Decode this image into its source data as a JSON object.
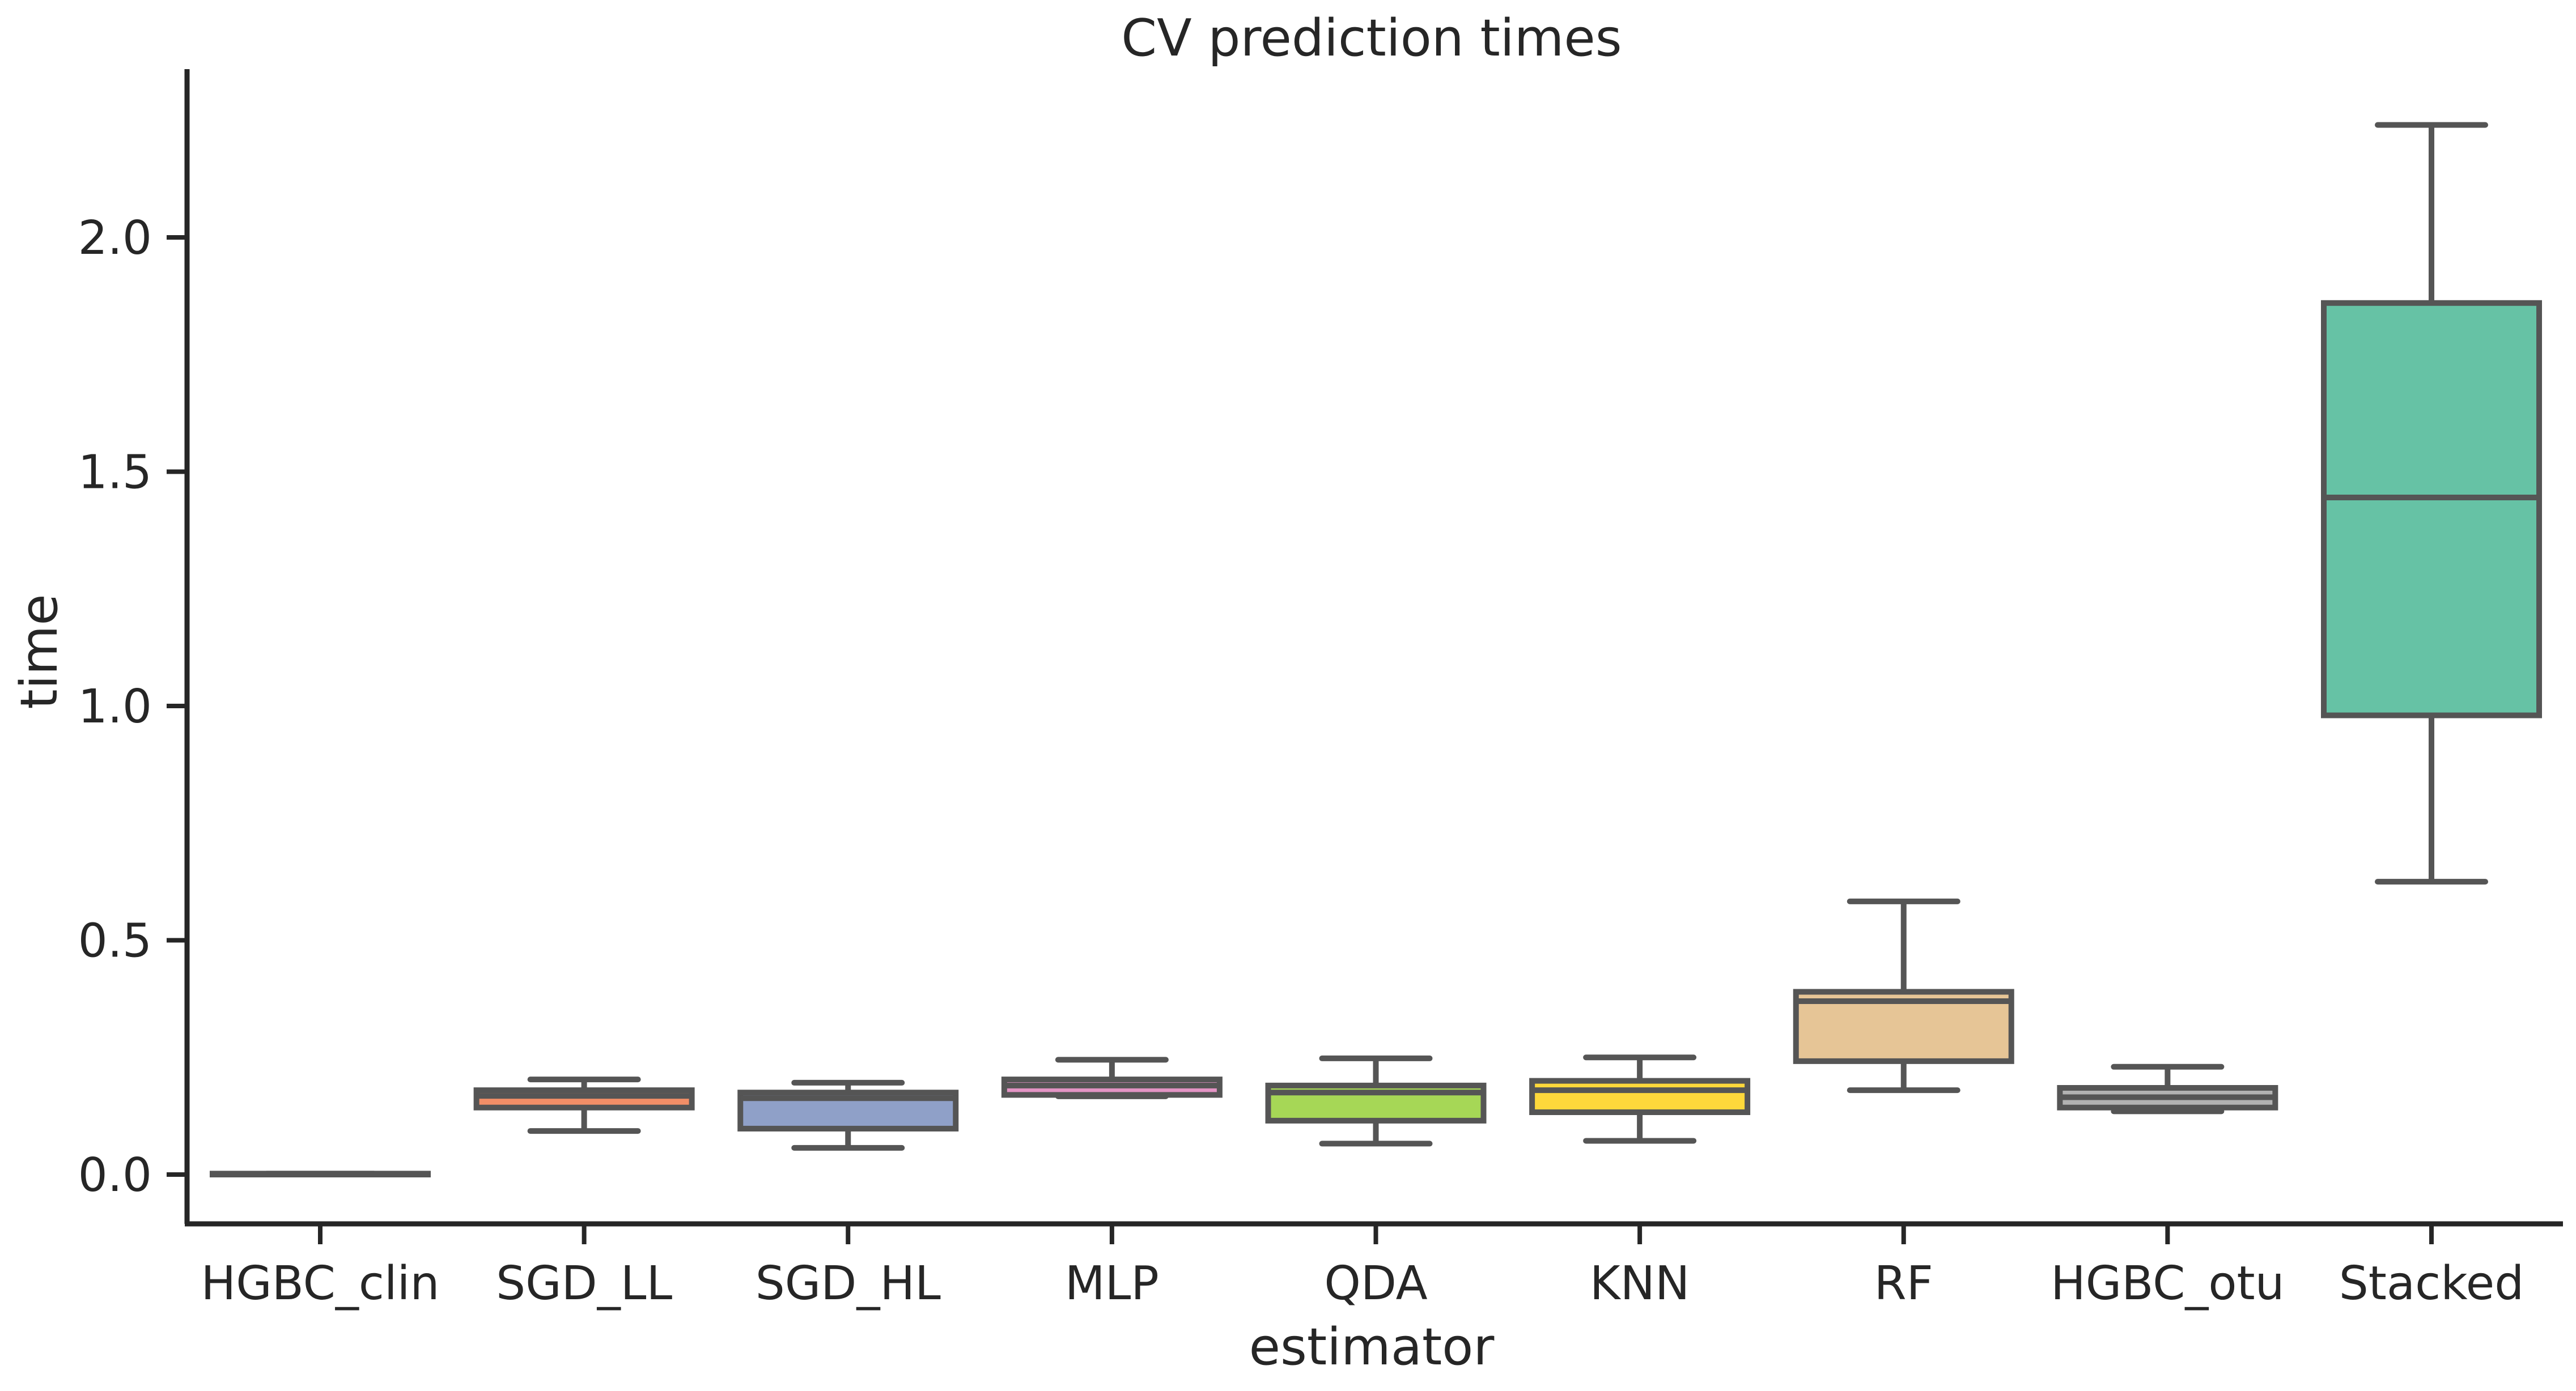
{
  "chart_data": {
    "type": "box",
    "title": "CV prediction times",
    "xlabel": "estimator",
    "ylabel": "time",
    "ylim": [
      -0.1,
      2.35
    ],
    "yticks": [
      "0.0",
      "0.5",
      "1.0",
      "1.5",
      "2.0"
    ],
    "ytick_values": [
      0.0,
      0.5,
      1.0,
      1.5,
      2.0
    ],
    "grid": false,
    "categories": [
      "HGBC_clin",
      "SGD_LL",
      "SGD_HL",
      "MLP",
      "QDA",
      "KNN",
      "RF",
      "HGBC_otu",
      "Stacked"
    ],
    "boxes": [
      {
        "min": 0.0,
        "q1": 0.0,
        "median": 0.0,
        "q3": 0.002,
        "max": 0.002,
        "color": "#8fd3c0"
      },
      {
        "min": 0.093,
        "q1": 0.143,
        "median": 0.168,
        "q3": 0.18,
        "max": 0.203,
        "color": "#f28e67"
      },
      {
        "min": 0.057,
        "q1": 0.098,
        "median": 0.163,
        "q3": 0.175,
        "max": 0.196,
        "color": "#8fa0c8"
      },
      {
        "min": 0.167,
        "q1": 0.17,
        "median": 0.19,
        "q3": 0.203,
        "max": 0.245,
        "color": "#e394c4"
      },
      {
        "min": 0.066,
        "q1": 0.115,
        "median": 0.175,
        "q3": 0.19,
        "max": 0.248,
        "color": "#a6d756"
      },
      {
        "min": 0.072,
        "q1": 0.133,
        "median": 0.18,
        "q3": 0.2,
        "max": 0.25,
        "color": "#fdd83b"
      },
      {
        "min": 0.18,
        "q1": 0.242,
        "median": 0.37,
        "q3": 0.39,
        "max": 0.583,
        "color": "#e6c596"
      },
      {
        "min": 0.135,
        "q1": 0.143,
        "median": 0.165,
        "q3": 0.185,
        "max": 0.23,
        "color": "#b2b2b2"
      },
      {
        "min": 0.625,
        "q1": 0.98,
        "median": 1.445,
        "q3": 1.86,
        "max": 2.24,
        "color": "#66c2a5"
      }
    ]
  }
}
